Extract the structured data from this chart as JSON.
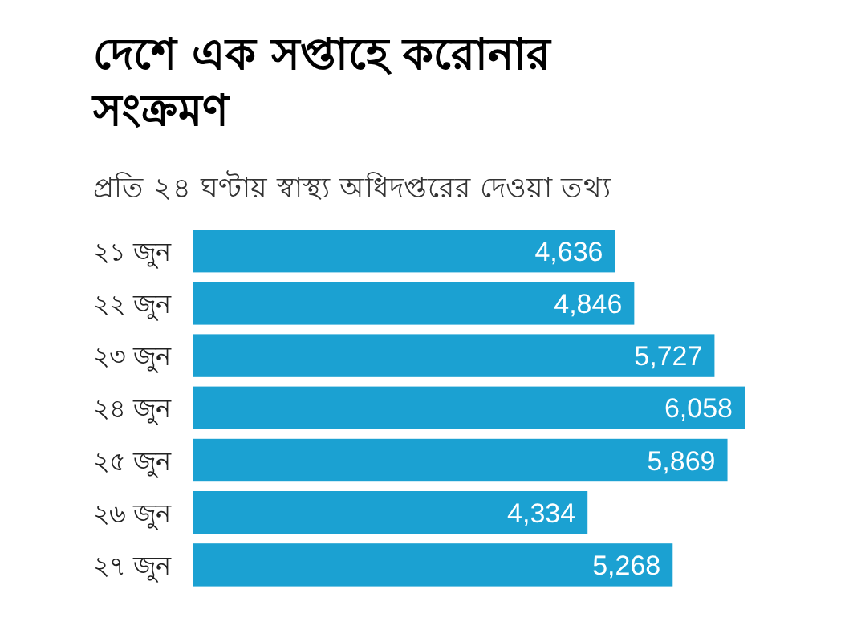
{
  "chart_data": {
    "type": "bar",
    "orientation": "horizontal",
    "title": "দেশে এক সপ্তাহে করোনার সংক্রমণ",
    "subtitle": "প্রতি ২৪ ঘণ্টায় স্বাস্থ্য অধিদপ্তরের দেওয়া তথ্য",
    "categories": [
      "২১ জুন",
      "২২ জুন",
      "২৩ জুন",
      "২৪ জুন",
      "২৫ জুন",
      "২৬ জুন",
      "২৭ জুন"
    ],
    "values": [
      4636,
      4846,
      5727,
      6058,
      5869,
      4334,
      5268
    ],
    "value_labels": [
      "4,636",
      "4,846",
      "5,727",
      "6,058",
      "5,869",
      "4,334",
      "5,268"
    ],
    "color": "#1ba1d2"
  }
}
